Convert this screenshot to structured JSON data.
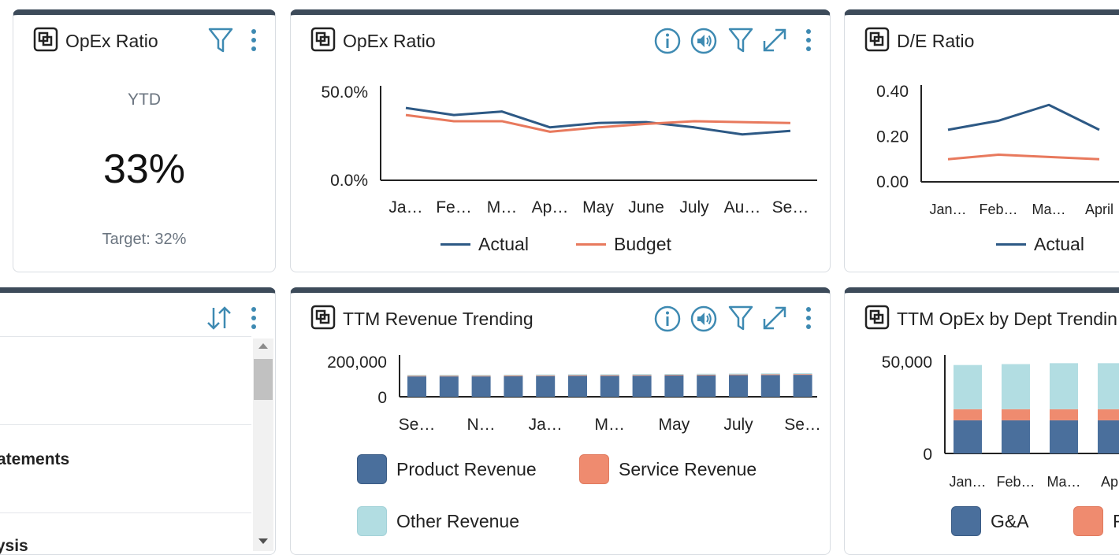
{
  "colors": {
    "header_bar": "#3d4b5a",
    "accent": "#3e8ab2",
    "actual": "#2d5985",
    "budget": "#e8795d",
    "product": "#4a6f9c",
    "service": "#ef8b6f",
    "other": "#b2dde2"
  },
  "kpi_card": {
    "title": "OpEx Ratio",
    "period": "YTD",
    "value": "33%",
    "target": "Target: 32%",
    "icons": [
      "filter-icon",
      "more-vertical-icon"
    ]
  },
  "opex_card": {
    "title": "OpEx Ratio",
    "icons": [
      "info-icon",
      "speaker-icon",
      "filter-icon",
      "expand-icon",
      "more-vertical-icon"
    ],
    "legend": [
      "Actual",
      "Budget"
    ]
  },
  "de_card": {
    "title": "D/E Ratio",
    "legend": [
      "Actual"
    ]
  },
  "list_card": {
    "icons": [
      "sort-icon",
      "more-vertical-icon"
    ],
    "items": [
      "tatements",
      "lysis"
    ]
  },
  "revenue_card": {
    "title": "TTM Revenue Trending",
    "icons": [
      "info-icon",
      "speaker-icon",
      "filter-icon",
      "expand-icon",
      "more-vertical-icon"
    ],
    "legend": [
      "Product Revenue",
      "Service Revenue",
      "Other Revenue"
    ]
  },
  "dept_card": {
    "title": "TTM OpEx by Dept Trendin",
    "legend": [
      "G&A",
      "R"
    ]
  },
  "chart_data": [
    {
      "type": "line",
      "title": "OpEx Ratio",
      "categories": [
        "Ja…",
        "Fe…",
        "M…",
        "Ap…",
        "May",
        "June",
        "July",
        "Au…",
        "Se…"
      ],
      "ytick_labels": [
        "50.0%",
        "0.0%"
      ],
      "ylim": [
        0,
        50
      ],
      "series": [
        {
          "name": "Actual",
          "values": [
            41,
            37,
            39,
            30,
            32.5,
            33,
            30,
            26,
            28
          ]
        },
        {
          "name": "Budget",
          "values": [
            37,
            33.5,
            33.5,
            27.5,
            30,
            32,
            33.5,
            33,
            32.5
          ]
        }
      ],
      "legend": "bottom"
    },
    {
      "type": "line",
      "title": "D/E Ratio",
      "categories": [
        "Jan…",
        "Feb…",
        "Ma…",
        "April"
      ],
      "ytick_labels": [
        "0.40",
        "0.20",
        "0.00"
      ],
      "ylim": [
        0,
        0.4
      ],
      "series": [
        {
          "name": "Actual",
          "values": [
            0.23,
            0.27,
            0.34,
            0.23
          ]
        },
        {
          "values": [
            0.1,
            0.12,
            0.11,
            0.1
          ]
        }
      ],
      "legend": "bottom"
    },
    {
      "type": "bar",
      "title": "TTM Revenue Trending",
      "categories": [
        "Se…",
        "",
        "N…",
        "",
        "Ja…",
        "",
        "M…",
        "",
        "May",
        "",
        "July",
        "",
        "Se…"
      ],
      "ytick_labels": [
        "200,000",
        "0"
      ],
      "ylim": [
        0,
        200000
      ],
      "stacked": true,
      "series": [
        {
          "name": "Product Revenue",
          "values": [
            115000,
            115000,
            115000,
            116000,
            117000,
            118000,
            118000,
            119000,
            120000,
            121000,
            122000,
            123000,
            124000
          ]
        },
        {
          "name": "Service Revenue",
          "values": [
            4000,
            4000,
            4000,
            4000,
            4000,
            4000,
            4000,
            4000,
            4000,
            4000,
            4000,
            4000,
            4000
          ]
        },
        {
          "name": "Other Revenue",
          "values": [
            5000,
            5000,
            5000,
            5000,
            5000,
            5000,
            5000,
            5000,
            5000,
            5000,
            5000,
            5000,
            5000
          ]
        }
      ],
      "legend": "bottom"
    },
    {
      "type": "bar",
      "title": "TTM OpEx by Dept Trendin",
      "categories": [
        "Jan…",
        "Feb…",
        "Ma…",
        "Apr"
      ],
      "ytick_labels": [
        "50,000",
        "0"
      ],
      "ylim": [
        0,
        50000
      ],
      "stacked": true,
      "series": [
        {
          "name": "G&A",
          "values": [
            18000,
            18000,
            18000,
            18000
          ]
        },
        {
          "name": "R",
          "values": [
            6000,
            6000,
            6000,
            6000
          ]
        },
        {
          "values": [
            24000,
            24500,
            25000,
            25000
          ]
        }
      ],
      "legend": "bottom"
    }
  ]
}
